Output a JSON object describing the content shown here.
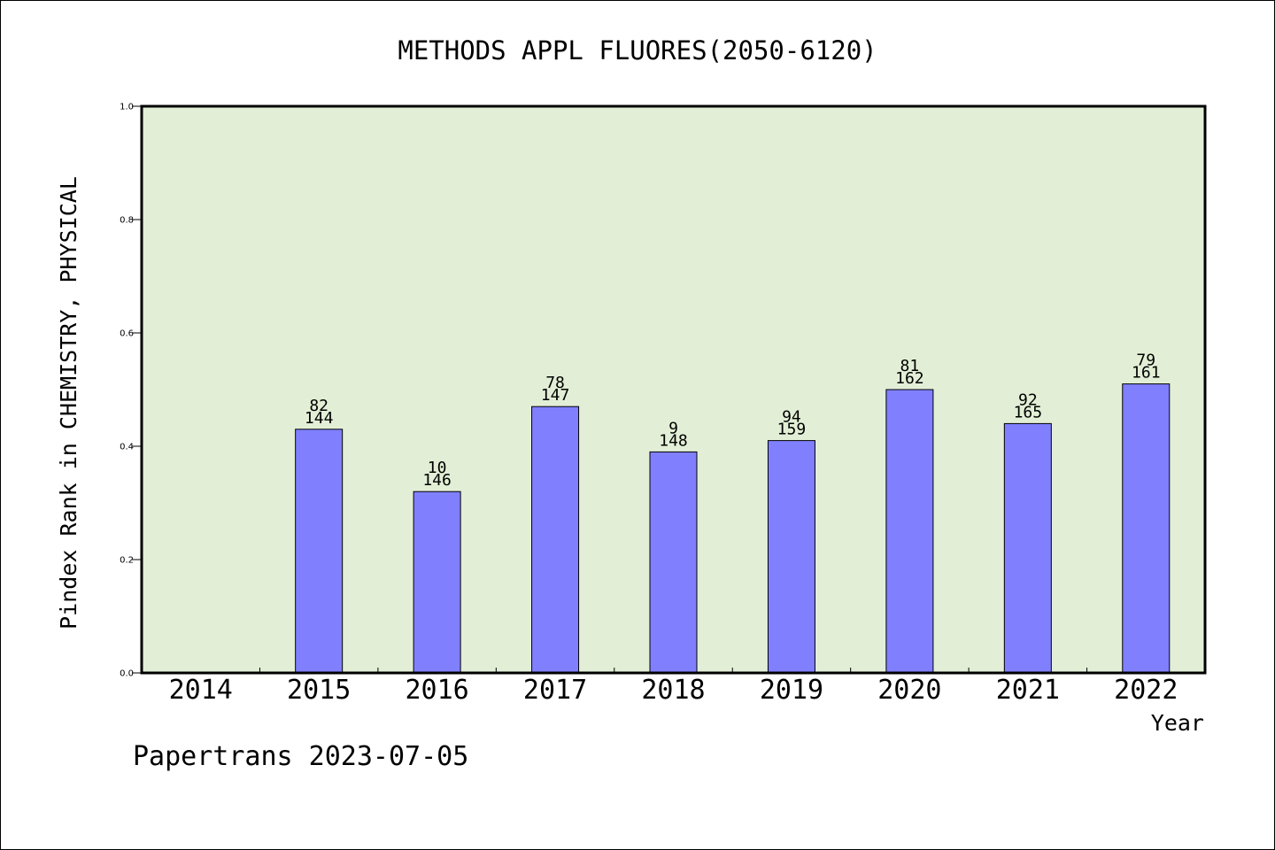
{
  "chart_data": {
    "type": "bar",
    "title": "METHODS APPL FLUORES(2050-6120)",
    "xlabel": "Year",
    "ylabel": "Pindex Rank in CHEMISTRY, PHYSICAL",
    "ylim": [
      0,
      1.0
    ],
    "yticks": [
      "0.0",
      "0.2",
      "0.4",
      "0.6",
      "0.8",
      "1.0"
    ],
    "categories": [
      "2014",
      "2015",
      "2016",
      "2017",
      "2018",
      "2019",
      "2020",
      "2021",
      "2022"
    ],
    "values": [
      null,
      0.43,
      0.32,
      0.47,
      0.39,
      0.41,
      0.5,
      0.44,
      0.51
    ],
    "rank_labels": [
      "",
      "82",
      "10",
      "78",
      "9",
      "94",
      "81",
      "92",
      "79"
    ],
    "total_labels": [
      "",
      "144",
      "146",
      "147",
      "148",
      "159",
      "162",
      "165",
      "161"
    ],
    "grid": false,
    "legend": "none",
    "colors": {
      "bar": "#8080ff",
      "plot_background": "#e2efd6",
      "axis": "#000000"
    }
  },
  "footer": {
    "credit": "Papertrans 2023-07-05"
  }
}
